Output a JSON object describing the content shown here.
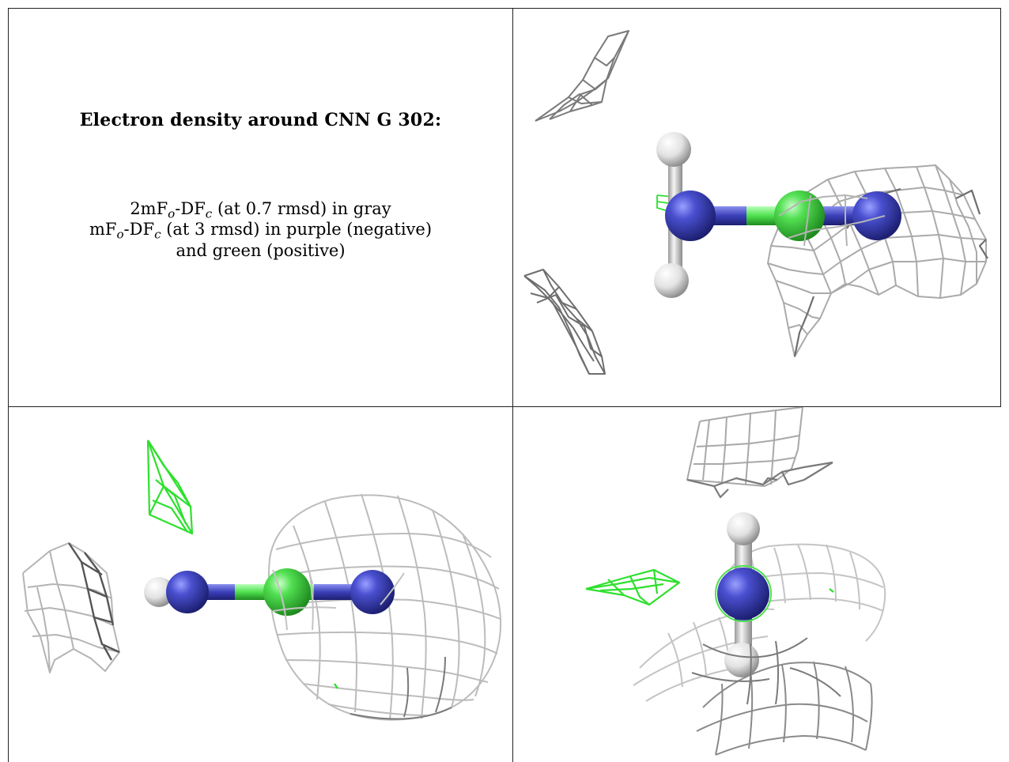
{
  "caption": {
    "title": "Electron density around CNN G 302:",
    "line1": {
      "pre": "2mF",
      "sub1": "o",
      "mid": "-DF",
      "sub2": "c",
      "post": " (at 0.7 rmsd) in gray"
    },
    "line2": {
      "pre": "mF",
      "sub1": "o",
      "mid": "-DF",
      "sub2": "c",
      "post": " (at 3 rmsd) in purple (negative)"
    },
    "line3": "and green (positive)"
  },
  "colors": {
    "mesh_gray": "#b4b4b4",
    "mesh_dark": "#6e6e6e",
    "mesh_green": "#2ee02e",
    "nitrogen": "#3a3fb8",
    "carbon": "#4fe04f",
    "hydrogen": "#e8e8e8"
  },
  "panels": [
    {
      "view": "top-right",
      "atoms": [
        "hydrogen-atom",
        "nitrogen-atom",
        "carbon-atom",
        "nitrogen-atom",
        "hydrogen-atom"
      ]
    },
    {
      "view": "bottom-left",
      "atoms": [
        "hydrogen-atom",
        "nitrogen-atom",
        "carbon-atom",
        "nitrogen-atom"
      ]
    },
    {
      "view": "bottom-right",
      "atoms": [
        "hydrogen-atom",
        "nitrogen-atom",
        "hydrogen-atom"
      ]
    }
  ]
}
